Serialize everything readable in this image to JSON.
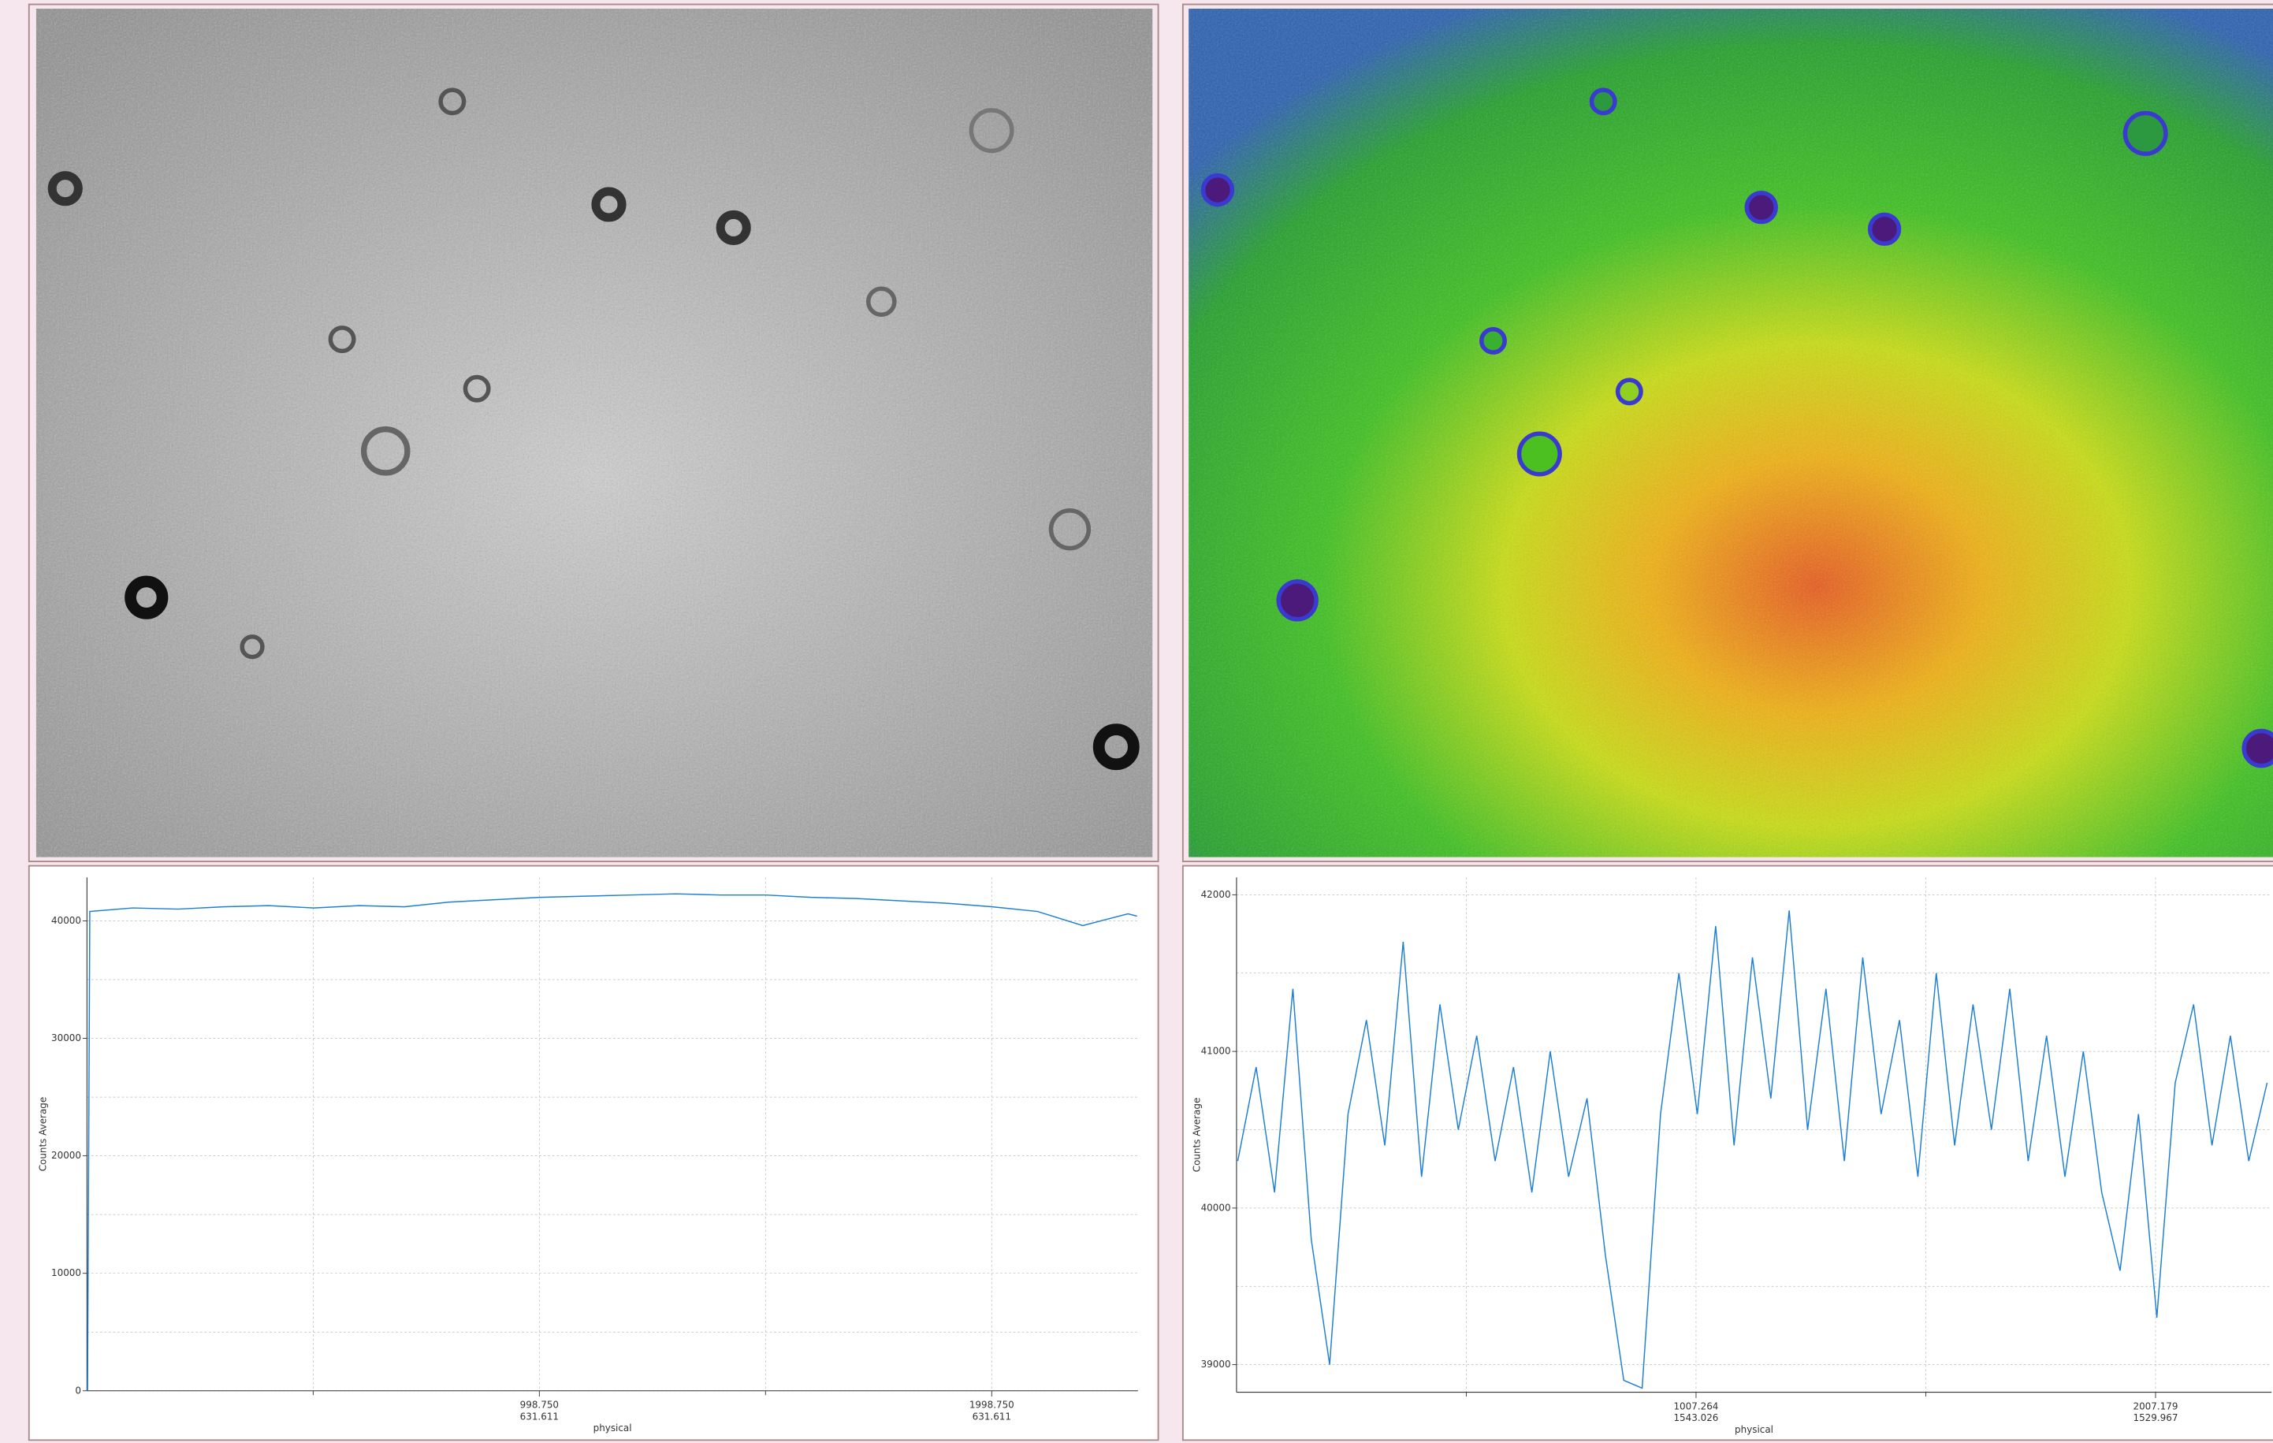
{
  "chart_data": [
    {
      "type": "line",
      "ylabel": "Counts Average",
      "xlabel": "physical",
      "color": "#1f7fd4",
      "xlim": [
        -1.25,
        2322
      ],
      "ylim": [
        0,
        43700
      ],
      "xticks": [
        {
          "value": 998.75,
          "label": "998.750"
        },
        {
          "value": 1998.75,
          "label": "1998.750"
        }
      ],
      "xticks_secondary": [
        "631.611",
        "631.611"
      ],
      "x_minor_ticks": [
        498.75,
        1498.75
      ],
      "yticks": [
        0,
        10000,
        20000,
        30000,
        40000
      ],
      "y_minor_ticks": [
        5000,
        15000,
        25000,
        35000
      ],
      "grid": true,
      "x": [
        0,
        5,
        100,
        200,
        300,
        400,
        500,
        600,
        700,
        800,
        900,
        1000,
        1100,
        1200,
        1300,
        1400,
        1500,
        1600,
        1700,
        1800,
        1900,
        2000,
        2100,
        2200,
        2300,
        2320
      ],
      "values": [
        0,
        40800,
        41100,
        41000,
        41200,
        41300,
        41100,
        41300,
        41200,
        41600,
        41800,
        42000,
        42100,
        42200,
        42300,
        42200,
        42200,
        42000,
        41900,
        41700,
        41500,
        41200,
        40800,
        39600,
        40600,
        40400
      ]
    },
    {
      "type": "line",
      "ylabel": "Counts Average",
      "xlabel": "physical",
      "color": "#1f7fd4",
      "xlim": [
        7.35,
        2259.6
      ],
      "ylim": [
        38824,
        42111
      ],
      "xticks": [
        {
          "value": 1007.264,
          "label": "1007.264"
        },
        {
          "value": 2007.179,
          "label": "2007.179"
        }
      ],
      "xticks_secondary": [
        "1543.026",
        "1529.967"
      ],
      "x_minor_ticks": [
        507.3,
        1507.2
      ],
      "yticks": [
        39000,
        40000,
        41000,
        42000
      ],
      "y_minor_ticks": [
        39500,
        40500,
        41500
      ],
      "grid": true,
      "x": [
        10,
        50,
        90,
        130,
        170,
        210,
        250,
        290,
        330,
        370,
        410,
        450,
        490,
        530,
        570,
        610,
        650,
        690,
        730,
        770,
        810,
        850,
        890,
        930,
        970,
        1010,
        1050,
        1090,
        1130,
        1170,
        1210,
        1250,
        1290,
        1330,
        1370,
        1410,
        1450,
        1490,
        1530,
        1570,
        1610,
        1650,
        1690,
        1730,
        1770,
        1810,
        1850,
        1890,
        1930,
        1970,
        2010,
        2050,
        2090,
        2130,
        2170,
        2210,
        2250
      ],
      "values": [
        40300,
        40900,
        40100,
        41400,
        39800,
        39000,
        40600,
        41200,
        40400,
        41700,
        40200,
        41300,
        40500,
        41100,
        40300,
        40900,
        40100,
        41000,
        40200,
        40700,
        39700,
        38900,
        38850,
        40600,
        41500,
        40600,
        41800,
        40400,
        41600,
        40700,
        41900,
        40500,
        41400,
        40300,
        41600,
        40600,
        41200,
        40200,
        41500,
        40400,
        41300,
        40500,
        41400,
        40300,
        41100,
        40200,
        41000,
        40100,
        39600,
        40600,
        39300,
        40800,
        41300,
        40400,
        41100,
        40300,
        40800
      ]
    }
  ]
}
